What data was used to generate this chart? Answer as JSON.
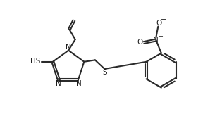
{
  "bg_color": "#ffffff",
  "line_color": "#2a2a2a",
  "line_width": 1.5,
  "figsize": [
    3.05,
    1.72
  ],
  "dpi": 100,
  "xlim": [
    0,
    10
  ],
  "ylim": [
    0,
    5.7
  ]
}
